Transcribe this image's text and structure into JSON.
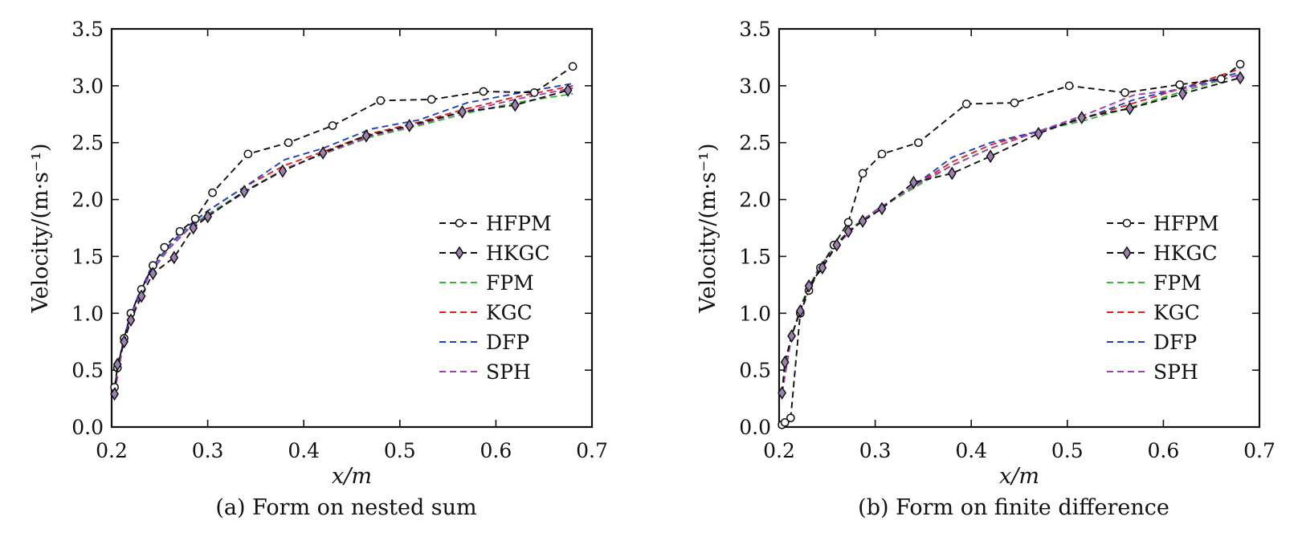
{
  "chart_data": [
    {
      "type": "line",
      "caption": "(a) Form on nested sum",
      "xlabel": "x/m",
      "ylabel": "Velocity/(m·s⁻¹)",
      "xlim": [
        0.2,
        0.7
      ],
      "ylim": [
        0.0,
        3.5
      ],
      "xticks": [
        "0.2",
        "0.3",
        "0.4",
        "0.5",
        "0.6",
        "0.7"
      ],
      "yticks": [
        "0.0",
        "0.5",
        "1.0",
        "1.5",
        "2.0",
        "2.5",
        "3.0",
        "3.5"
      ],
      "legend_position": "lower-right",
      "grid": false,
      "series": [
        {
          "name": "HFPM",
          "color": "#111111",
          "marker": "circle",
          "x": [
            0.203,
            0.206,
            0.213,
            0.22,
            0.231,
            0.243,
            0.255,
            0.271,
            0.287,
            0.305,
            0.342,
            0.384,
            0.43,
            0.48,
            0.533,
            0.587,
            0.64,
            0.68
          ],
          "y": [
            0.35,
            0.52,
            0.78,
            1.0,
            1.21,
            1.42,
            1.58,
            1.72,
            1.83,
            2.06,
            2.4,
            2.5,
            2.65,
            2.87,
            2.88,
            2.95,
            2.94,
            3.17
          ]
        },
        {
          "name": "HKGC",
          "color": "#111111",
          "marker": "diamond",
          "x": [
            0.203,
            0.206,
            0.213,
            0.22,
            0.231,
            0.243,
            0.265,
            0.285,
            0.3,
            0.338,
            0.378,
            0.42,
            0.465,
            0.51,
            0.565,
            0.62,
            0.675
          ],
          "y": [
            0.29,
            0.55,
            0.75,
            0.94,
            1.15,
            1.35,
            1.49,
            1.75,
            1.85,
            2.07,
            2.25,
            2.41,
            2.56,
            2.65,
            2.77,
            2.83,
            2.96
          ]
        },
        {
          "name": "FPM",
          "color": "#3cb43c",
          "marker": "none",
          "x": [
            0.203,
            0.213,
            0.225,
            0.24,
            0.26,
            0.28,
            0.3,
            0.34,
            0.38,
            0.42,
            0.47,
            0.52,
            0.57,
            0.62,
            0.68
          ],
          "y": [
            0.3,
            0.78,
            1.08,
            1.35,
            1.58,
            1.75,
            1.87,
            2.08,
            2.27,
            2.4,
            2.55,
            2.65,
            2.76,
            2.85,
            2.93
          ]
        },
        {
          "name": "KGC",
          "color": "#e02020",
          "marker": "none",
          "x": [
            0.203,
            0.213,
            0.225,
            0.24,
            0.26,
            0.28,
            0.3,
            0.34,
            0.38,
            0.42,
            0.47,
            0.52,
            0.57,
            0.62,
            0.68
          ],
          "y": [
            0.3,
            0.8,
            1.1,
            1.38,
            1.6,
            1.77,
            1.9,
            2.12,
            2.3,
            2.42,
            2.58,
            2.68,
            2.8,
            2.9,
            3.0
          ]
        },
        {
          "name": "DFP",
          "color": "#2040c0",
          "marker": "none",
          "x": [
            0.203,
            0.213,
            0.225,
            0.24,
            0.26,
            0.28,
            0.3,
            0.34,
            0.38,
            0.42,
            0.47,
            0.52,
            0.57,
            0.62,
            0.68
          ],
          "y": [
            0.3,
            0.8,
            1.1,
            1.38,
            1.6,
            1.77,
            1.9,
            2.12,
            2.35,
            2.45,
            2.62,
            2.7,
            2.85,
            2.93,
            3.02
          ]
        },
        {
          "name": "SPH",
          "color": "#a040b0",
          "marker": "none",
          "x": [
            0.203,
            0.213,
            0.225,
            0.24,
            0.26,
            0.28,
            0.3,
            0.34,
            0.38,
            0.42,
            0.47,
            0.52,
            0.57,
            0.62,
            0.68
          ],
          "y": [
            0.3,
            0.77,
            1.07,
            1.35,
            1.57,
            1.74,
            1.86,
            2.07,
            2.27,
            2.4,
            2.56,
            2.66,
            2.78,
            2.88,
            2.98
          ]
        }
      ]
    },
    {
      "type": "line",
      "caption": "(b) Form on finite difference",
      "xlabel": "x/m",
      "ylabel": "Velocity/(m·s⁻¹)",
      "xlim": [
        0.2,
        0.7
      ],
      "ylim": [
        0.0,
        3.5
      ],
      "xticks": [
        "0.2",
        "0.3",
        "0.4",
        "0.5",
        "0.6",
        "0.7"
      ],
      "yticks": [
        "0.0",
        "0.5",
        "1.0",
        "1.5",
        "2.0",
        "2.5",
        "3.0",
        "3.5"
      ],
      "legend_position": "lower-right",
      "grid": false,
      "series": [
        {
          "name": "HFPM",
          "color": "#111111",
          "marker": "circle",
          "x": [
            0.203,
            0.206,
            0.212,
            0.222,
            0.231,
            0.243,
            0.257,
            0.272,
            0.287,
            0.307,
            0.345,
            0.395,
            0.445,
            0.502,
            0.56,
            0.617,
            0.66,
            0.68
          ],
          "y": [
            0.02,
            0.04,
            0.08,
            1.0,
            1.2,
            1.4,
            1.6,
            1.8,
            2.23,
            2.4,
            2.5,
            2.84,
            2.85,
            3.0,
            2.94,
            3.01,
            3.06,
            3.19
          ]
        },
        {
          "name": "HKGC",
          "color": "#111111",
          "marker": "diamond",
          "x": [
            0.203,
            0.206,
            0.213,
            0.222,
            0.231,
            0.245,
            0.26,
            0.272,
            0.287,
            0.307,
            0.34,
            0.38,
            0.42,
            0.47,
            0.515,
            0.565,
            0.62,
            0.68
          ],
          "y": [
            0.3,
            0.57,
            0.8,
            1.02,
            1.24,
            1.4,
            1.6,
            1.72,
            1.81,
            1.92,
            2.15,
            2.23,
            2.38,
            2.58,
            2.72,
            2.8,
            2.93,
            3.07
          ]
        },
        {
          "name": "FPM",
          "color": "#3cb43c",
          "marker": "none",
          "x": [
            0.203,
            0.213,
            0.225,
            0.24,
            0.26,
            0.28,
            0.3,
            0.34,
            0.38,
            0.42,
            0.47,
            0.52,
            0.57,
            0.62,
            0.68
          ],
          "y": [
            0.3,
            0.8,
            1.12,
            1.38,
            1.62,
            1.78,
            1.9,
            2.1,
            2.3,
            2.45,
            2.6,
            2.7,
            2.82,
            2.95,
            3.1
          ]
        },
        {
          "name": "KGC",
          "color": "#e02020",
          "marker": "none",
          "x": [
            0.203,
            0.213,
            0.225,
            0.24,
            0.26,
            0.28,
            0.3,
            0.34,
            0.38,
            0.42,
            0.47,
            0.52,
            0.57,
            0.62,
            0.68
          ],
          "y": [
            0.3,
            0.8,
            1.1,
            1.37,
            1.6,
            1.77,
            1.9,
            2.12,
            2.33,
            2.48,
            2.6,
            2.72,
            2.85,
            2.98,
            3.15
          ]
        },
        {
          "name": "DFP",
          "color": "#2040c0",
          "marker": "none",
          "x": [
            0.203,
            0.213,
            0.225,
            0.24,
            0.26,
            0.28,
            0.3,
            0.34,
            0.38,
            0.42,
            0.47,
            0.52,
            0.57,
            0.62,
            0.68
          ],
          "y": [
            0.3,
            0.8,
            1.1,
            1.37,
            1.6,
            1.77,
            1.9,
            2.12,
            2.37,
            2.5,
            2.6,
            2.72,
            2.88,
            2.98,
            3.12
          ]
        },
        {
          "name": "SPH",
          "color": "#a040b0",
          "marker": "none",
          "x": [
            0.203,
            0.213,
            0.225,
            0.24,
            0.26,
            0.28,
            0.3,
            0.34,
            0.38,
            0.42,
            0.47,
            0.52,
            0.57,
            0.62,
            0.68
          ],
          "y": [
            0.3,
            0.8,
            1.1,
            1.37,
            1.6,
            1.77,
            1.9,
            2.12,
            2.3,
            2.45,
            2.6,
            2.75,
            2.92,
            2.97,
            3.1
          ]
        }
      ]
    }
  ]
}
